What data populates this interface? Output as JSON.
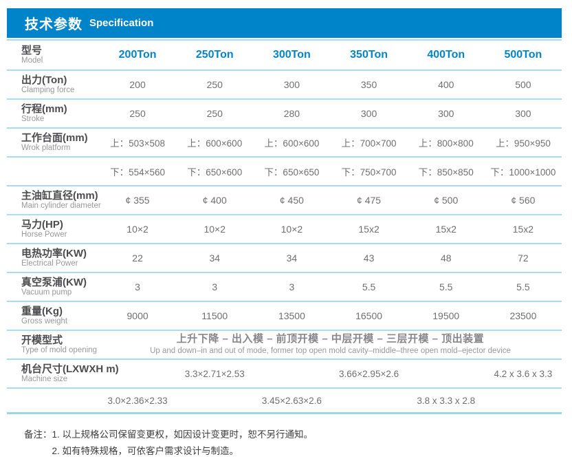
{
  "colors": {
    "accent_blue": "#0084C9",
    "separator_blue": "#A9DCF2"
  },
  "header": {
    "title_zh": "技术参数",
    "title_en": "Specification"
  },
  "table": {
    "model_row": {
      "label_zh": "型号",
      "label_en": "Model",
      "values": [
        "200Ton",
        "250Ton",
        "300Ton",
        "350Ton",
        "400Ton",
        "500Ton"
      ]
    },
    "rows": [
      {
        "label_zh": "出力(Ton)",
        "label_en": "Clamping force",
        "values": [
          "200",
          "250",
          "300",
          "350",
          "400",
          "500"
        ]
      },
      {
        "label_zh": "行程(mm)",
        "label_en": "Stroke",
        "values": [
          "250",
          "250",
          "280",
          "300",
          "300",
          "300"
        ]
      },
      {
        "label_zh": "工作台面(mm)",
        "label_en": "Wrok platform",
        "values": [
          "上：503×508",
          "上：600×600",
          "上：600×600",
          "上：700×700",
          "上：800×800",
          "上：950×950"
        ]
      },
      {
        "label_zh": "",
        "label_en": "",
        "values": [
          "下：554×560",
          "下：650×600",
          "下：650×650",
          "下：750×700",
          "下：850×850",
          "下：1000×1000"
        ]
      },
      {
        "label_zh": "主油缸直径(mm)",
        "label_en": "Main cylinder diameter",
        "values": [
          "¢ 355",
          "¢ 400",
          "¢ 450",
          "¢ 475",
          "¢ 500",
          "¢ 560"
        ]
      },
      {
        "label_zh": "马力(HP)",
        "label_en": "Horse Power",
        "values": [
          "10×2",
          "10×2",
          "10×2",
          "15x2",
          "15x2",
          "15x2"
        ]
      },
      {
        "label_zh": "电热功率(KW)",
        "label_en": "Electrical Power",
        "values": [
          "22",
          "34",
          "34",
          "43",
          "48",
          "72"
        ]
      },
      {
        "label_zh": "真空泵浦(KW)",
        "label_en": "Vacuum pump",
        "values": [
          "3",
          "3",
          "3",
          "5.5",
          "5.5",
          "5.5"
        ]
      },
      {
        "label_zh": "重量(Kg)",
        "label_en": "Gross weight",
        "values": [
          "9000",
          "11500",
          "13500",
          "16500",
          "19500",
          "23500"
        ]
      }
    ],
    "mold_opening": {
      "label_zh": "开模型式",
      "label_en": "Type of mold opening",
      "value_zh": "上升下降 – 出入模 – 前顶开模 – 中层开模 – 三层开模 – 顶出装置",
      "value_en": "Up and down–in and out of mode, former top open mold cavity–middle–three open mold–ejector device"
    },
    "machine_size": {
      "label_zh": "机台尺寸(LXWXH m)",
      "label_en": "Machine size",
      "row1": [
        "3.3×2.71×2.53",
        "3.66×2.95×2.6",
        "4.2 x 3.6 x 3.3"
      ],
      "row2": [
        "3.0×2.36×2.33",
        "3.45×2.63×2.6",
        "3.8 x 3.3 x 2.8"
      ]
    }
  },
  "notes": {
    "prefix": "备注：",
    "items": [
      "1. 以上规格公司保留变更权，如因设计变更时，恕不另行通知。",
      "2. 如有特殊规格，可依客户需求设计与制造。"
    ]
  }
}
